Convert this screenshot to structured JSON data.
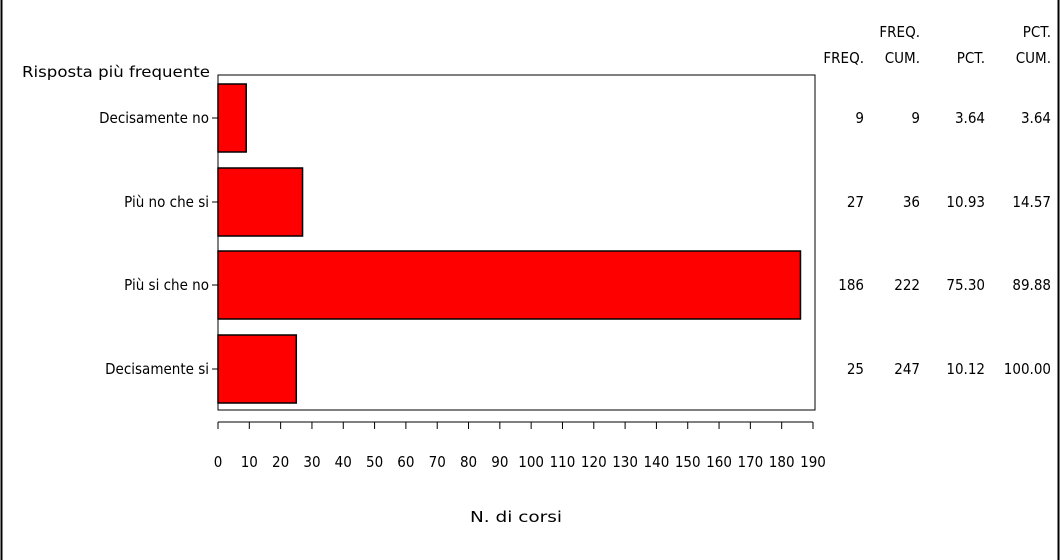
{
  "chart_data": {
    "type": "bar",
    "orientation": "horizontal",
    "category_axis_label": "Risposta più frequente",
    "xlabel": "N. di corsi",
    "categories": [
      "Decisamente no",
      "Più no che si",
      "Più si che no",
      "Decisamente si"
    ],
    "values": [
      9,
      27,
      186,
      25
    ],
    "xlim": [
      0,
      190
    ],
    "xticks": [
      "0",
      "10",
      "20",
      "30",
      "40",
      "50",
      "60",
      "70",
      "80",
      "90",
      "100",
      "110",
      "120",
      "130",
      "140",
      "150",
      "160",
      "170",
      "180",
      "190"
    ],
    "bar_color": "#ff0000",
    "bar_outline_color": "#000000",
    "stats_headers": [
      {
        "top": "",
        "bottom": "FREQ."
      },
      {
        "top": "FREQ.",
        "bottom": "CUM."
      },
      {
        "top": "",
        "bottom": "PCT."
      },
      {
        "top": "PCT.",
        "bottom": "CUM."
      }
    ],
    "stats": [
      [
        "9",
        "9",
        "3.64",
        "3.64"
      ],
      [
        "27",
        "36",
        "10.93",
        "14.57"
      ],
      [
        "186",
        "222",
        "75.30",
        "89.88"
      ],
      [
        "25",
        "247",
        "10.12",
        "100.00"
      ]
    ]
  }
}
